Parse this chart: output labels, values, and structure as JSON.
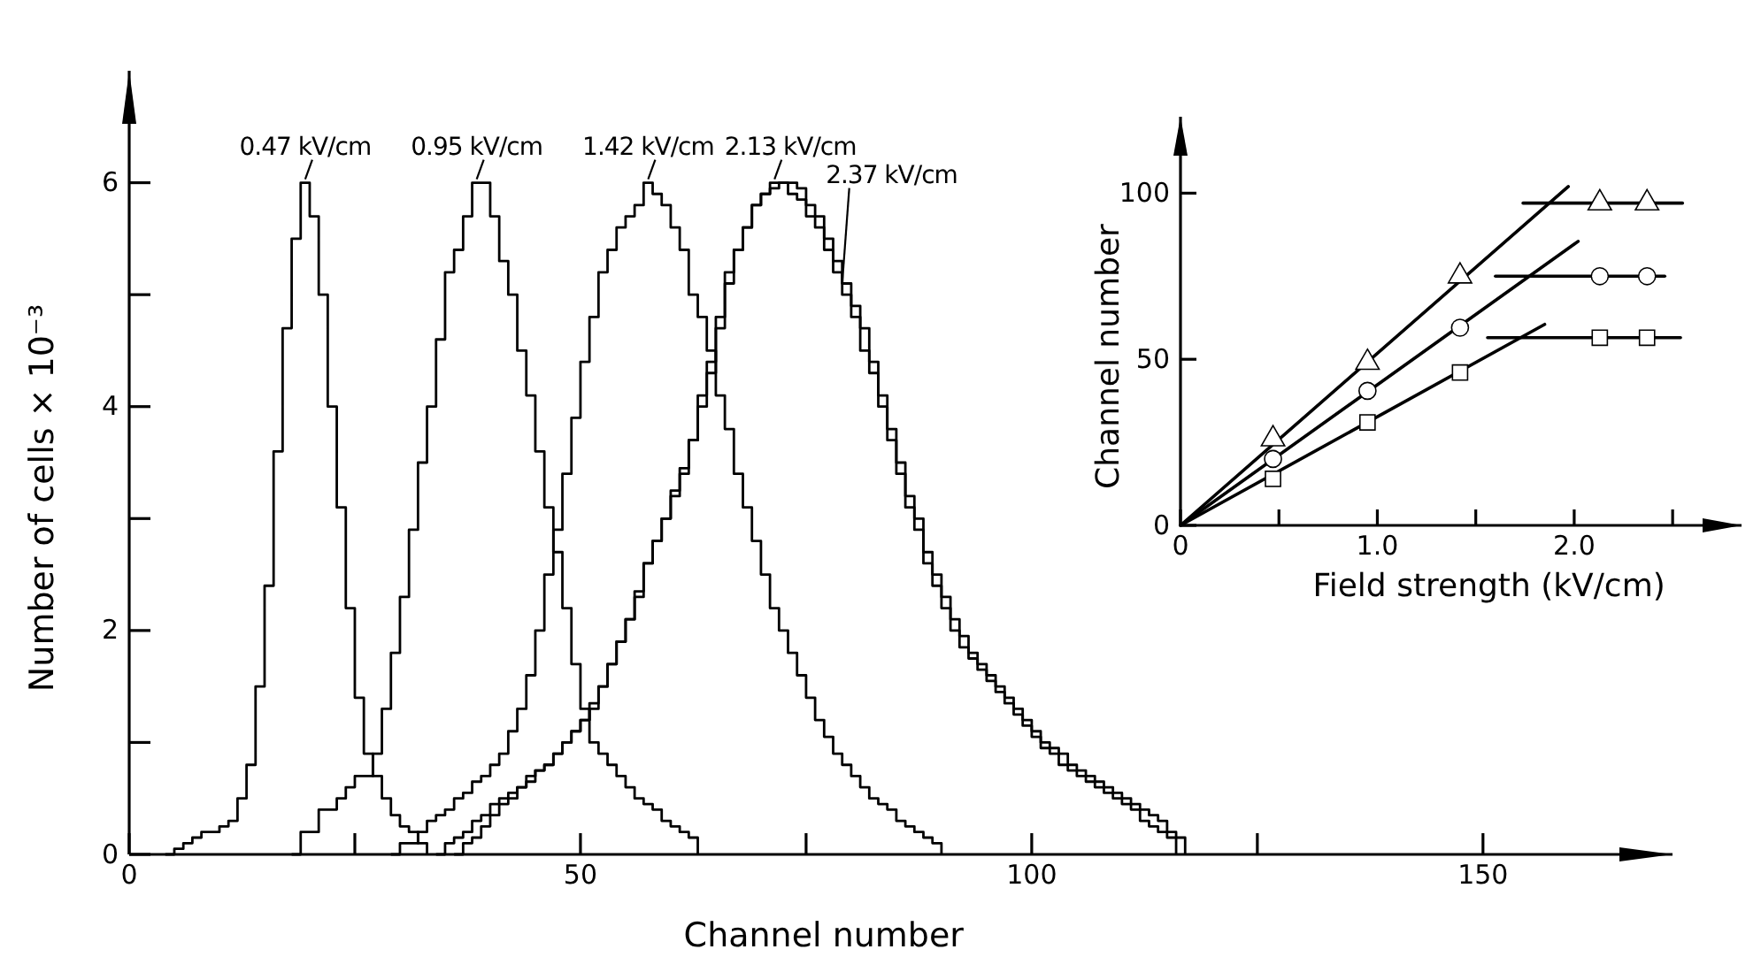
{
  "chart_data": [
    {
      "type": "step",
      "xlabel": "Channel number",
      "ylabel": "Number of cells × 10⁻³",
      "xlim": [
        0,
        171
      ],
      "ylim": [
        0,
        7
      ],
      "xticks": [
        0,
        {
          "value": 25,
          "label": null
        },
        50,
        {
          "value": 75,
          "label": null
        },
        100,
        {
          "value": 125,
          "label": null
        },
        150
      ],
      "yticks": [
        0,
        {
          "value": 1,
          "label": null
        },
        2,
        {
          "value": 3,
          "label": null
        },
        4,
        {
          "value": 5,
          "label": null
        },
        6
      ],
      "series": [
        {
          "name": "0.47 kV/cm",
          "color": "#000000",
          "x": [
            4,
            5,
            6,
            7,
            8,
            9,
            10,
            11,
            12,
            13,
            14,
            15,
            16,
            17,
            18,
            19,
            20,
            21,
            22,
            23,
            24,
            25,
            26,
            27,
            28,
            29,
            30,
            31,
            32,
            33
          ],
          "values": [
            0,
            0.05,
            0.1,
            0.15,
            0.2,
            0.2,
            0.25,
            0.3,
            0.5,
            0.8,
            1.5,
            2.4,
            3.6,
            4.7,
            5.5,
            6.0,
            5.7,
            5.0,
            4.0,
            3.1,
            2.2,
            1.4,
            0.9,
            0.7,
            0.5,
            0.35,
            0.25,
            0.2,
            0.1,
            0
          ]
        },
        {
          "name": "0.95 kV/cm",
          "color": "#000000",
          "x": [
            18,
            19,
            20,
            21,
            22,
            23,
            24,
            25,
            26,
            27,
            28,
            29,
            30,
            31,
            32,
            33,
            34,
            35,
            36,
            37,
            38,
            39,
            40,
            41,
            42,
            43,
            44,
            45,
            46,
            47,
            48,
            49,
            50,
            51,
            52,
            53,
            54,
            55,
            56,
            57,
            58,
            59,
            60,
            61,
            62,
            63
          ],
          "values": [
            0,
            0.2,
            0.2,
            0.4,
            0.4,
            0.5,
            0.6,
            0.7,
            0.7,
            0.9,
            1.3,
            1.8,
            2.3,
            2.9,
            3.5,
            4.0,
            4.6,
            5.2,
            5.4,
            5.7,
            6.0,
            6.0,
            5.7,
            5.3,
            5.0,
            4.5,
            4.1,
            3.6,
            3.1,
            2.7,
            2.2,
            1.7,
            1.3,
            1.0,
            0.9,
            0.8,
            0.7,
            0.6,
            0.5,
            0.45,
            0.4,
            0.3,
            0.25,
            0.2,
            0.15,
            0
          ]
        },
        {
          "name": "1.42 kV/cm",
          "color": "#000000",
          "x": [
            29,
            30,
            31,
            32,
            33,
            34,
            35,
            36,
            37,
            38,
            39,
            40,
            41,
            42,
            43,
            44,
            45,
            46,
            47,
            48,
            49,
            50,
            51,
            52,
            53,
            54,
            55,
            56,
            57,
            58,
            59,
            60,
            61,
            62,
            63,
            64,
            65,
            66,
            67,
            68,
            69,
            70,
            71,
            72,
            73,
            74,
            75,
            76,
            77,
            78,
            79,
            80,
            81,
            82,
            83,
            84,
            85,
            86,
            87,
            88,
            89,
            90
          ],
          "values": [
            0,
            0.1,
            0.1,
            0.2,
            0.3,
            0.35,
            0.4,
            0.5,
            0.55,
            0.65,
            0.7,
            0.8,
            0.9,
            1.1,
            1.3,
            1.6,
            2.0,
            2.5,
            2.9,
            3.4,
            3.9,
            4.4,
            4.8,
            5.2,
            5.4,
            5.6,
            5.7,
            5.8,
            6.0,
            5.9,
            5.8,
            5.6,
            5.4,
            5.0,
            4.8,
            4.5,
            4.1,
            3.8,
            3.4,
            3.1,
            2.8,
            2.5,
            2.2,
            2.0,
            1.8,
            1.6,
            1.4,
            1.2,
            1.05,
            0.9,
            0.8,
            0.7,
            0.6,
            0.5,
            0.45,
            0.4,
            0.3,
            0.25,
            0.2,
            0.15,
            0.1,
            0
          ]
        },
        {
          "name": "2.13 kV/cm",
          "color": "#000000",
          "x": [
            34,
            35,
            36,
            37,
            38,
            39,
            40,
            41,
            42,
            43,
            44,
            45,
            46,
            47,
            48,
            49,
            50,
            51,
            52,
            53,
            54,
            55,
            56,
            57,
            58,
            59,
            60,
            61,
            62,
            63,
            64,
            65,
            66,
            67,
            68,
            69,
            70,
            71,
            72,
            73,
            74,
            75,
            76,
            77,
            78,
            79,
            80,
            81,
            82,
            83,
            84,
            85,
            86,
            87,
            88,
            89,
            90,
            91,
            92,
            93,
            94,
            95,
            96,
            97,
            98,
            99,
            100,
            101,
            102,
            103,
            104,
            105,
            106,
            107,
            108,
            109,
            110,
            111,
            112,
            113,
            114,
            115,
            116
          ],
          "values": [
            0,
            0.1,
            0.15,
            0.2,
            0.3,
            0.35,
            0.45,
            0.5,
            0.55,
            0.6,
            0.7,
            0.75,
            0.8,
            0.9,
            1.0,
            1.1,
            1.2,
            1.35,
            1.5,
            1.7,
            1.9,
            2.1,
            2.3,
            2.6,
            2.8,
            3.0,
            3.2,
            3.4,
            3.7,
            4.0,
            4.3,
            4.8,
            5.2,
            5.4,
            5.6,
            5.8,
            5.9,
            6.0,
            6.0,
            5.9,
            5.85,
            5.7,
            5.6,
            5.4,
            5.2,
            5.0,
            4.8,
            4.5,
            4.3,
            4.0,
            3.7,
            3.4,
            3.1,
            2.9,
            2.6,
            2.4,
            2.2,
            2.0,
            1.85,
            1.75,
            1.65,
            1.55,
            1.45,
            1.35,
            1.25,
            1.15,
            1.05,
            0.95,
            0.9,
            0.8,
            0.75,
            0.7,
            0.65,
            0.6,
            0.55,
            0.5,
            0.45,
            0.4,
            0.3,
            0.25,
            0.2,
            0.15,
            0
          ]
        },
        {
          "name": "2.37 kV/cm",
          "color": "#000000",
          "x": [
            36,
            37,
            38,
            39,
            40,
            41,
            42,
            43,
            44,
            45,
            46,
            47,
            48,
            49,
            50,
            51,
            52,
            53,
            54,
            55,
            56,
            57,
            58,
            59,
            60,
            61,
            62,
            63,
            64,
            65,
            66,
            67,
            68,
            69,
            70,
            71,
            72,
            73,
            74,
            75,
            76,
            77,
            78,
            79,
            80,
            81,
            82,
            83,
            84,
            85,
            86,
            87,
            88,
            89,
            90,
            91,
            92,
            93,
            94,
            95,
            96,
            97,
            98,
            99,
            100,
            101,
            102,
            103,
            104,
            105,
            106,
            107,
            108,
            109,
            110,
            111,
            112,
            113,
            114,
            115,
            116,
            117
          ],
          "values": [
            0,
            0.1,
            0.15,
            0.25,
            0.35,
            0.45,
            0.5,
            0.6,
            0.65,
            0.75,
            0.8,
            0.9,
            1.0,
            1.1,
            1.2,
            1.3,
            1.5,
            1.7,
            1.9,
            2.1,
            2.35,
            2.6,
            2.8,
            3.0,
            3.25,
            3.45,
            3.7,
            4.1,
            4.4,
            4.7,
            5.1,
            5.4,
            5.6,
            5.8,
            5.9,
            5.95,
            6.0,
            6.0,
            5.95,
            5.8,
            5.7,
            5.5,
            5.3,
            5.1,
            4.9,
            4.7,
            4.4,
            4.1,
            3.8,
            3.5,
            3.2,
            3.0,
            2.7,
            2.5,
            2.3,
            2.1,
            1.95,
            1.8,
            1.7,
            1.6,
            1.5,
            1.4,
            1.3,
            1.2,
            1.1,
            1.0,
            0.95,
            0.9,
            0.8,
            0.75,
            0.7,
            0.65,
            0.6,
            0.55,
            0.5,
            0.45,
            0.4,
            0.35,
            0.3,
            0.2,
            0.15,
            0
          ]
        }
      ]
    },
    {
      "type": "scatter",
      "xlabel": "Field strength (kV/cm)",
      "ylabel": "Channel number",
      "xlim": [
        0,
        2.85
      ],
      "ylim": [
        0,
        123
      ],
      "xticks": [
        0,
        {
          "value": 0.5,
          "label": null
        },
        {
          "value": 1,
          "label": "1.0"
        },
        {
          "value": 1.5,
          "label": null
        },
        {
          "value": 2,
          "label": "2.0"
        },
        {
          "value": 2.5,
          "label": null
        }
      ],
      "yticks": [
        0,
        50,
        100
      ],
      "series": [
        {
          "type": "line",
          "color": "#000000",
          "x": [
            0,
            1.97
          ],
          "values": [
            0,
            102
          ]
        },
        {
          "type": "line",
          "color": "#000000",
          "x": [
            0,
            2.02
          ],
          "values": [
            0,
            85.5
          ]
        },
        {
          "type": "line",
          "color": "#000000",
          "x": [
            0,
            1.85
          ],
          "values": [
            0,
            60.5
          ]
        },
        {
          "type": "line",
          "color": "#000000",
          "x": [
            1.74,
            2.55
          ],
          "values": [
            97,
            97
          ]
        },
        {
          "type": "line",
          "color": "#000000",
          "x": [
            1.6,
            2.46
          ],
          "values": [
            75,
            75
          ]
        },
        {
          "type": "line",
          "color": "#000000",
          "x": [
            1.56,
            2.54
          ],
          "values": [
            56.5,
            56.5
          ]
        },
        {
          "marker": "triangle",
          "color": "#000000",
          "x": [
            0.47,
            0.95,
            1.42,
            2.13,
            2.37
          ],
          "values": [
            26,
            49,
            75,
            97,
            97
          ]
        },
        {
          "marker": "circle",
          "color": "#000000",
          "x": [
            0.47,
            0.95,
            1.42,
            2.13,
            2.37
          ],
          "values": [
            20,
            40.5,
            59.5,
            75,
            75
          ]
        },
        {
          "marker": "square",
          "color": "#000000",
          "x": [
            0.47,
            0.95,
            1.42,
            2.13,
            2.37
          ],
          "values": [
            14,
            31,
            46,
            56.5,
            56.5
          ]
        }
      ]
    }
  ]
}
